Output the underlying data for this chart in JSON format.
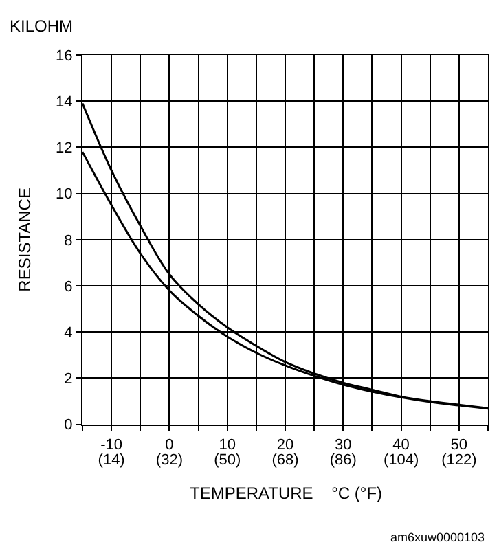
{
  "chart_data": {
    "type": "line",
    "xlabel": "TEMPERATURE    °C (°F)",
    "ylabel": "RESISTANCE",
    "annotations": [
      "KILOHM",
      "am6xuw0000103"
    ],
    "x": [
      -15,
      -10,
      -5,
      0,
      5,
      10,
      15,
      20,
      25,
      30,
      35,
      40,
      45,
      50,
      55
    ],
    "series": [
      {
        "color": "#000000",
        "values": [
          13.9,
          11.0,
          8.6,
          6.5,
          5.2,
          4.2,
          3.4,
          2.7,
          2.2,
          1.8,
          1.5,
          1.2,
          1.0,
          0.85,
          0.7
        ]
      },
      {
        "color": "#000000",
        "values": [
          11.8,
          9.5,
          7.4,
          5.8,
          4.7,
          3.8,
          3.1,
          2.55,
          2.1,
          1.72,
          1.42,
          1.17,
          0.97,
          0.82,
          0.68
        ]
      }
    ],
    "xlim": [
      -15,
      55
    ],
    "xticks": [
      {
        "value": -15,
        "label": null
      },
      -10,
      {
        "value": -5,
        "label": null
      },
      0,
      {
        "value": 5,
        "label": null
      },
      10,
      {
        "value": 15,
        "label": null
      },
      20,
      {
        "value": 25,
        "label": null
      },
      30,
      {
        "value": 35,
        "label": null
      },
      40,
      {
        "value": 45,
        "label": null
      },
      50,
      {
        "value": 55,
        "label": null
      }
    ],
    "x2lim": [
      5,
      131
    ],
    "x2ticks": [
      {
        "value": 14,
        "label": "(14)"
      },
      {
        "value": 32,
        "label": "(32)"
      },
      {
        "value": 50,
        "label": "(50)"
      },
      {
        "value": 68,
        "label": "(68)"
      },
      {
        "value": 86,
        "label": "(86)"
      },
      {
        "value": 104,
        "label": "(104)"
      },
      {
        "value": 122,
        "label": "(122)"
      }
    ],
    "ylim": [
      0,
      16
    ],
    "yticks": [
      0,
      2,
      4,
      6,
      8,
      10,
      12,
      14,
      16
    ],
    "grid": true,
    "marker": "none",
    "line_style": "solid"
  }
}
